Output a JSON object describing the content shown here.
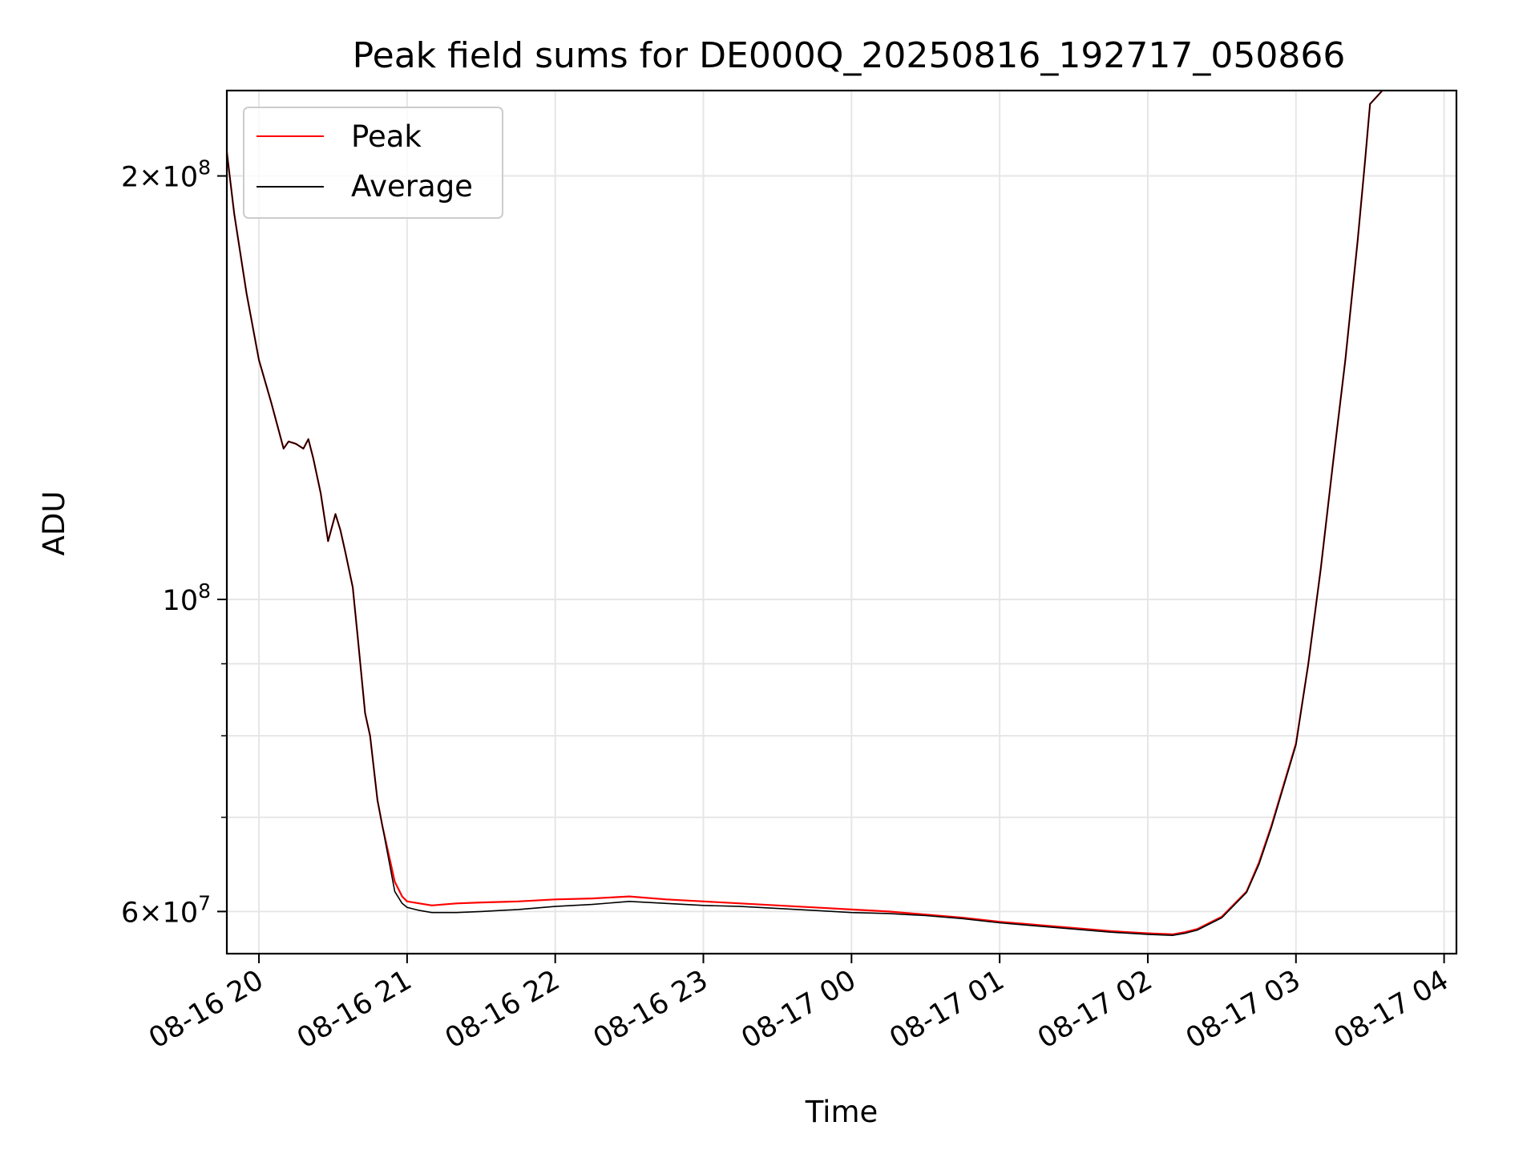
{
  "chart_data": {
    "type": "line",
    "title": "Peak field sums for DE000Q_20250816_192717_050866",
    "xlabel": "Time",
    "ylabel": "ADU",
    "y_scale": "log",
    "ylim": [
      56000000,
      230000000
    ],
    "xlim": [
      "08-16 19:47",
      "08-17 04:05"
    ],
    "grid": true,
    "legend_position": "upper left",
    "x_ticks": [
      {
        "label": "08-16 20",
        "time": "08-16 20:00"
      },
      {
        "label": "08-16 21",
        "time": "08-16 21:00"
      },
      {
        "label": "08-16 22",
        "time": "08-16 22:00"
      },
      {
        "label": "08-16 23",
        "time": "08-16 23:00"
      },
      {
        "label": "08-17 00",
        "time": "08-17 00:00"
      },
      {
        "label": "08-17 01",
        "time": "08-17 01:00"
      },
      {
        "label": "08-17 02",
        "time": "08-17 02:00"
      },
      {
        "label": "08-17 03",
        "time": "08-17 03:00"
      },
      {
        "label": "08-17 04",
        "time": "08-17 04:00"
      }
    ],
    "y_ticks": [
      {
        "mantissa": "2",
        "exponent": "8",
        "value": 200000000
      },
      {
        "mantissa": "",
        "exponent": "8",
        "value": 100000000
      },
      {
        "mantissa": "6",
        "exponent": "7",
        "value": 60000000
      }
    ],
    "y_minor_ticks": [
      70000000,
      80000000,
      90000000
    ],
    "series": [
      {
        "name": "Peak",
        "color": "#ff0000",
        "x": [
          "08-16 19:47",
          "08-16 19:50",
          "08-16 19:55",
          "08-16 20:00",
          "08-16 20:05",
          "08-16 20:10",
          "08-16 20:12",
          "08-16 20:15",
          "08-16 20:18",
          "08-16 20:20",
          "08-16 20:22",
          "08-16 20:25",
          "08-16 20:28",
          "08-16 20:31",
          "08-16 20:33",
          "08-16 20:35",
          "08-16 20:38",
          "08-16 20:40",
          "08-16 20:43",
          "08-16 20:45",
          "08-16 20:48",
          "08-16 20:50",
          "08-16 20:55",
          "08-16 20:58",
          "08-16 21:00",
          "08-16 21:05",
          "08-16 21:10",
          "08-16 21:20",
          "08-16 21:30",
          "08-16 21:45",
          "08-16 22:00",
          "08-16 22:15",
          "08-16 22:30",
          "08-16 22:45",
          "08-16 23:00",
          "08-16 23:15",
          "08-16 23:30",
          "08-16 23:45",
          "08-17 00:00",
          "08-17 00:15",
          "08-17 00:30",
          "08-17 00:45",
          "08-17 01:00",
          "08-17 01:15",
          "08-17 01:30",
          "08-17 01:45",
          "08-17 02:00",
          "08-17 02:10",
          "08-17 02:15",
          "08-17 02:20",
          "08-17 02:30",
          "08-17 02:40",
          "08-17 02:45",
          "08-17 02:50",
          "08-17 03:00",
          "08-17 03:05",
          "08-17 03:10",
          "08-17 03:15",
          "08-17 03:20",
          "08-17 03:25",
          "08-17 03:28",
          "08-17 03:30",
          "08-17 03:35"
        ],
        "values": [
          208000000,
          188000000,
          165000000,
          148000000,
          138000000,
          128000000,
          129500000,
          129000000,
          128000000,
          130000000,
          126000000,
          119000000,
          110000000,
          115000000,
          112000000,
          108000000,
          102000000,
          94000000,
          83000000,
          80000000,
          72000000,
          69000000,
          63000000,
          61500000,
          61000000,
          60800000,
          60600000,
          60800000,
          60900000,
          61000000,
          61200000,
          61300000,
          61500000,
          61200000,
          61000000,
          60800000,
          60600000,
          60400000,
          60200000,
          60000000,
          59700000,
          59400000,
          59000000,
          58700000,
          58400000,
          58100000,
          57900000,
          57800000,
          58000000,
          58300000,
          59500000,
          62000000,
          65000000,
          69000000,
          79000000,
          90000000,
          105000000,
          125000000,
          148000000,
          180000000,
          205000000,
          225000000,
          230000000
        ]
      },
      {
        "name": "Average",
        "color": "#000000",
        "x": [
          "08-16 19:47",
          "08-16 19:50",
          "08-16 19:55",
          "08-16 20:00",
          "08-16 20:05",
          "08-16 20:10",
          "08-16 20:12",
          "08-16 20:15",
          "08-16 20:18",
          "08-16 20:20",
          "08-16 20:22",
          "08-16 20:25",
          "08-16 20:28",
          "08-16 20:31",
          "08-16 20:33",
          "08-16 20:35",
          "08-16 20:38",
          "08-16 20:40",
          "08-16 20:43",
          "08-16 20:45",
          "08-16 20:48",
          "08-16 20:50",
          "08-16 20:55",
          "08-16 20:58",
          "08-16 21:00",
          "08-16 21:05",
          "08-16 21:10",
          "08-16 21:20",
          "08-16 21:30",
          "08-16 21:45",
          "08-16 22:00",
          "08-16 22:15",
          "08-16 22:30",
          "08-16 22:45",
          "08-16 23:00",
          "08-16 23:15",
          "08-16 23:30",
          "08-16 23:45",
          "08-17 00:00",
          "08-17 00:15",
          "08-17 00:30",
          "08-17 00:45",
          "08-17 01:00",
          "08-17 01:15",
          "08-17 01:30",
          "08-17 01:45",
          "08-17 02:00",
          "08-17 02:10",
          "08-17 02:15",
          "08-17 02:20",
          "08-17 02:30",
          "08-17 02:40",
          "08-17 02:45",
          "08-17 02:50",
          "08-17 03:00",
          "08-17 03:05",
          "08-17 03:10",
          "08-17 03:15",
          "08-17 03:20",
          "08-17 03:25",
          "08-17 03:28",
          "08-17 03:30",
          "08-17 03:35"
        ],
        "values": [
          208000000,
          188000000,
          165000000,
          148000000,
          138000000,
          128000000,
          129500000,
          129000000,
          128000000,
          130000000,
          126000000,
          119000000,
          110000000,
          115000000,
          112000000,
          108000000,
          102000000,
          94000000,
          83000000,
          80000000,
          72000000,
          69000000,
          62000000,
          60800000,
          60400000,
          60100000,
          59900000,
          59900000,
          60000000,
          60200000,
          60500000,
          60700000,
          61000000,
          60800000,
          60600000,
          60500000,
          60300000,
          60100000,
          59900000,
          59800000,
          59600000,
          59300000,
          58900000,
          58600000,
          58300000,
          58000000,
          57800000,
          57700000,
          57900000,
          58200000,
          59400000,
          61900000,
          64800000,
          68800000,
          78800000,
          90000000,
          105000000,
          125000000,
          148000000,
          180000000,
          205000000,
          225000000,
          230000000
        ]
      }
    ]
  }
}
